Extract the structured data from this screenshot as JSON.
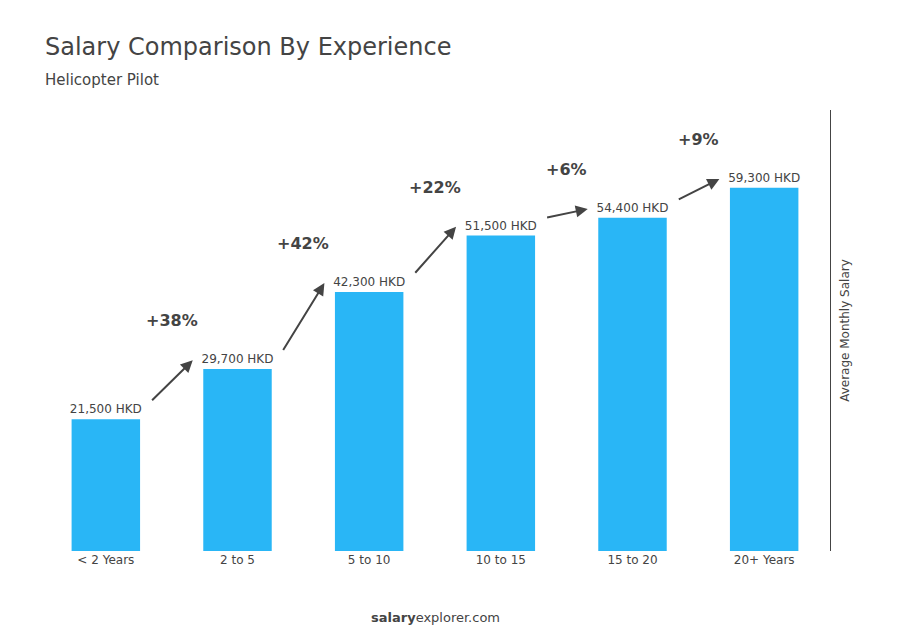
{
  "chart_data": {
    "type": "bar",
    "title": "Salary Comparison By Experience",
    "subtitle": "Helicopter Pilot",
    "categories": [
      "< 2 Years",
      "2 to 5",
      "5 to 10",
      "10 to 15",
      "15 to 20",
      "20+ Years"
    ],
    "values": [
      21500,
      29700,
      42300,
      51500,
      54400,
      59300
    ],
    "value_labels": [
      "21,500 HKD",
      "29,700 HKD",
      "42,300 HKD",
      "51,500 HKD",
      "54,400 HKD",
      "59,300 HKD"
    ],
    "data_labels": true,
    "annotations": [
      "+38%",
      "+42%",
      "+22%",
      "+6%",
      "+9%"
    ],
    "ylabel": "Average Monthly Salary",
    "watermark": [
      "salary",
      "explorer.com"
    ],
    "color": "#29B6F6",
    "ylim": [
      0,
      72000
    ],
    "tick_labels": "x",
    "grid": false
  }
}
